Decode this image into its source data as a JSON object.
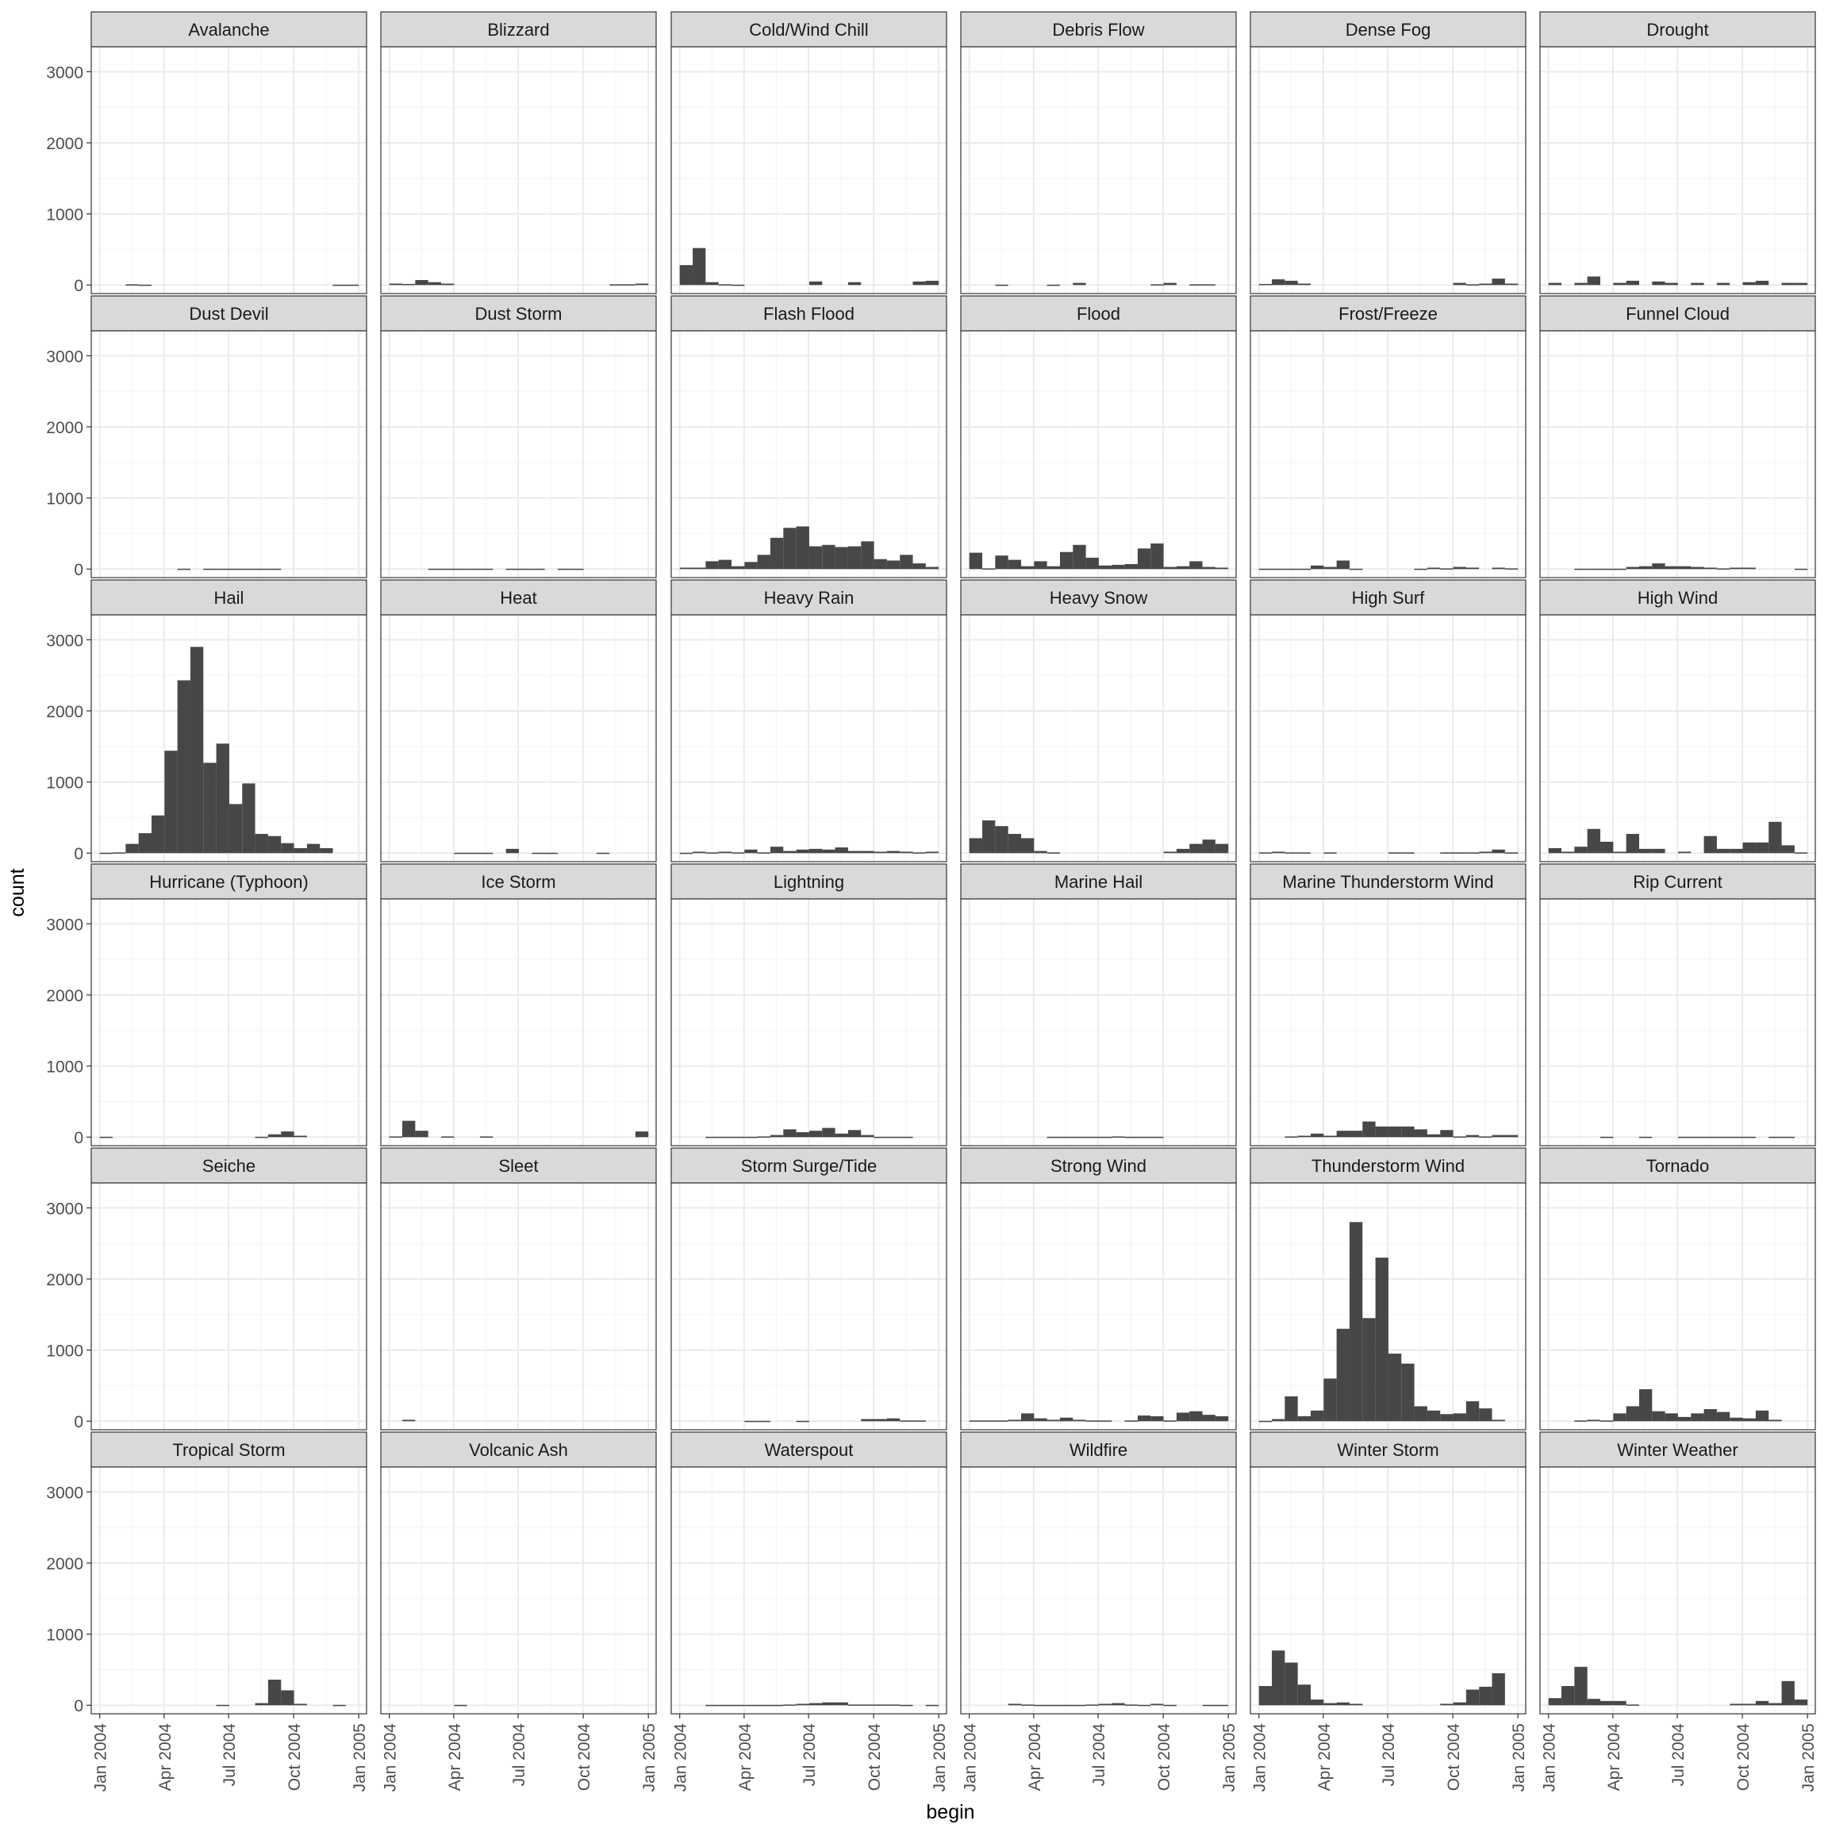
{
  "chart_data": {
    "type": "bar",
    "ylabel": "count",
    "xlabel": "begin",
    "ylim": [
      -120,
      3350
    ],
    "xlim": [
      -12,
      377
    ],
    "grid": true,
    "layout": {
      "columns": 6,
      "rows": 6
    },
    "bins": {
      "count": 20,
      "width_days": 18.3,
      "origin_days_from_x_start": 0
    },
    "x_ticks": [
      {
        "label": "Jan 2004",
        "day": 0
      },
      {
        "label": "Apr 2004",
        "day": 91
      },
      {
        "label": "Jul 2004",
        "day": 182
      },
      {
        "label": "Oct 2004",
        "day": 274
      },
      {
        "label": "Jan 2005",
        "day": 366
      }
    ],
    "y_ticks": [
      0,
      1000,
      2000,
      3000
    ],
    "panels": [
      {
        "title": "Avalanche",
        "values": [
          0,
          0,
          10,
          5,
          0,
          0,
          0,
          0,
          0,
          0,
          0,
          0,
          0,
          0,
          0,
          0,
          0,
          0,
          5,
          5
        ]
      },
      {
        "title": "Blizzard",
        "values": [
          20,
          15,
          70,
          40,
          20,
          0,
          0,
          0,
          0,
          0,
          0,
          0,
          0,
          0,
          0,
          0,
          0,
          10,
          10,
          20
        ]
      },
      {
        "title": "Cold/Wind Chill",
        "values": [
          280,
          520,
          40,
          10,
          5,
          0,
          0,
          0,
          0,
          0,
          50,
          0,
          0,
          40,
          0,
          0,
          0,
          0,
          50,
          60
        ]
      },
      {
        "title": "Debris Flow",
        "values": [
          0,
          0,
          5,
          0,
          0,
          0,
          5,
          0,
          30,
          0,
          0,
          0,
          0,
          0,
          10,
          30,
          0,
          10,
          10,
          0
        ]
      },
      {
        "title": "Dense Fog",
        "values": [
          15,
          80,
          60,
          20,
          0,
          0,
          0,
          0,
          0,
          0,
          0,
          0,
          0,
          0,
          0,
          30,
          10,
          20,
          90,
          20
        ]
      },
      {
        "title": "Drought",
        "values": [
          30,
          0,
          30,
          120,
          0,
          30,
          60,
          0,
          50,
          30,
          0,
          30,
          0,
          30,
          0,
          40,
          60,
          0,
          30,
          30
        ]
      },
      {
        "title": "Dust Devil",
        "values": [
          0,
          0,
          0,
          0,
          0,
          0,
          5,
          0,
          5,
          5,
          5,
          5,
          5,
          5,
          0,
          0,
          0,
          0,
          0,
          0
        ]
      },
      {
        "title": "Dust Storm",
        "values": [
          0,
          0,
          0,
          5,
          5,
          5,
          5,
          5,
          0,
          5,
          5,
          5,
          0,
          5,
          5,
          0,
          0,
          0,
          0,
          0
        ]
      },
      {
        "title": "Flash Flood",
        "values": [
          20,
          20,
          110,
          130,
          40,
          100,
          200,
          440,
          580,
          600,
          320,
          340,
          310,
          320,
          390,
          140,
          120,
          200,
          80,
          30
        ]
      },
      {
        "title": "Flood",
        "values": [
          230,
          10,
          190,
          130,
          40,
          110,
          40,
          240,
          340,
          160,
          50,
          60,
          70,
          290,
          360,
          30,
          40,
          110,
          30,
          20
        ]
      },
      {
        "title": "Frost/Freeze",
        "values": [
          5,
          5,
          5,
          5,
          50,
          30,
          120,
          5,
          0,
          0,
          0,
          0,
          5,
          20,
          10,
          30,
          20,
          0,
          20,
          10
        ]
      },
      {
        "title": "Funnel Cloud",
        "values": [
          0,
          0,
          5,
          5,
          5,
          5,
          30,
          40,
          80,
          40,
          40,
          30,
          20,
          10,
          20,
          20,
          0,
          0,
          0,
          5
        ]
      },
      {
        "title": "Hail",
        "values": [
          5,
          10,
          130,
          280,
          530,
          1440,
          2430,
          2900,
          1270,
          1540,
          690,
          980,
          270,
          240,
          140,
          70,
          130,
          70,
          0,
          0
        ]
      },
      {
        "title": "Heat",
        "values": [
          0,
          0,
          0,
          0,
          0,
          5,
          5,
          5,
          0,
          60,
          0,
          5,
          5,
          0,
          0,
          0,
          5,
          0,
          0,
          0
        ]
      },
      {
        "title": "Heavy Rain",
        "values": [
          5,
          20,
          10,
          20,
          10,
          50,
          10,
          90,
          30,
          50,
          60,
          50,
          80,
          30,
          30,
          20,
          30,
          20,
          10,
          20
        ]
      },
      {
        "title": "Heavy Snow",
        "values": [
          210,
          460,
          380,
          270,
          210,
          30,
          10,
          0,
          0,
          0,
          0,
          0,
          0,
          0,
          0,
          20,
          60,
          130,
          190,
          130
        ]
      },
      {
        "title": "High Surf",
        "values": [
          10,
          20,
          10,
          10,
          0,
          10,
          0,
          0,
          0,
          0,
          10,
          10,
          0,
          0,
          10,
          10,
          10,
          20,
          50,
          10
        ]
      },
      {
        "title": "High Wind",
        "values": [
          70,
          20,
          90,
          340,
          160,
          20,
          270,
          60,
          60,
          0,
          20,
          0,
          240,
          60,
          60,
          150,
          150,
          440,
          110,
          10
        ]
      },
      {
        "title": "Hurricane (Typhoon)",
        "values": [
          5,
          0,
          0,
          0,
          0,
          0,
          0,
          0,
          0,
          0,
          0,
          0,
          5,
          40,
          80,
          20,
          0,
          0,
          0,
          0
        ]
      },
      {
        "title": "Ice Storm",
        "values": [
          10,
          230,
          90,
          0,
          10,
          0,
          0,
          10,
          0,
          0,
          0,
          0,
          0,
          0,
          0,
          0,
          0,
          0,
          0,
          80
        ]
      },
      {
        "title": "Lightning",
        "values": [
          0,
          0,
          5,
          5,
          5,
          5,
          10,
          30,
          110,
          70,
          90,
          130,
          50,
          100,
          30,
          5,
          5,
          5,
          0,
          0
        ]
      },
      {
        "title": "Marine Hail",
        "values": [
          0,
          0,
          0,
          0,
          0,
          0,
          5,
          5,
          5,
          5,
          5,
          10,
          5,
          5,
          5,
          0,
          0,
          0,
          0,
          0
        ]
      },
      {
        "title": "Marine Thunderstorm Wind",
        "values": [
          0,
          0,
          10,
          20,
          50,
          20,
          90,
          90,
          220,
          150,
          150,
          150,
          110,
          40,
          100,
          10,
          30,
          10,
          30,
          30
        ]
      },
      {
        "title": "Rip Current",
        "values": [
          0,
          0,
          0,
          0,
          5,
          0,
          0,
          5,
          0,
          0,
          5,
          5,
          5,
          5,
          5,
          5,
          0,
          5,
          5,
          0
        ]
      },
      {
        "title": "Seiche",
        "values": [
          0,
          0,
          0,
          0,
          0,
          0,
          0,
          0,
          0,
          0,
          0,
          0,
          0,
          0,
          0,
          0,
          0,
          0,
          0,
          0
        ]
      },
      {
        "title": "Sleet",
        "values": [
          0,
          20,
          0,
          0,
          0,
          0,
          0,
          0,
          0,
          0,
          0,
          0,
          0,
          0,
          0,
          0,
          0,
          0,
          0,
          0
        ]
      },
      {
        "title": "Storm Surge/Tide",
        "values": [
          0,
          0,
          0,
          0,
          0,
          5,
          5,
          0,
          0,
          5,
          0,
          0,
          0,
          0,
          30,
          30,
          40,
          10,
          10,
          0
        ]
      },
      {
        "title": "Strong Wind",
        "values": [
          10,
          10,
          10,
          20,
          110,
          40,
          20,
          50,
          20,
          10,
          10,
          0,
          10,
          80,
          70,
          10,
          120,
          140,
          90,
          70
        ]
      },
      {
        "title": "Thunderstorm Wind",
        "values": [
          5,
          30,
          350,
          70,
          150,
          600,
          1300,
          2800,
          1450,
          2300,
          950,
          810,
          210,
          150,
          100,
          110,
          280,
          180,
          20,
          0
        ]
      },
      {
        "title": "Tornado",
        "values": [
          0,
          0,
          10,
          20,
          10,
          110,
          210,
          450,
          140,
          110,
          60,
          110,
          170,
          130,
          50,
          40,
          150,
          20,
          0,
          0
        ]
      },
      {
        "title": "Tropical Storm",
        "values": [
          0,
          0,
          0,
          0,
          0,
          0,
          0,
          0,
          0,
          5,
          0,
          0,
          30,
          360,
          210,
          20,
          0,
          0,
          5,
          0
        ]
      },
      {
        "title": "Volcanic Ash",
        "values": [
          0,
          0,
          0,
          0,
          0,
          5,
          0,
          0,
          0,
          0,
          0,
          0,
          0,
          0,
          0,
          0,
          0,
          0,
          0,
          0
        ]
      },
      {
        "title": "Waterspout",
        "values": [
          0,
          0,
          5,
          5,
          5,
          5,
          5,
          5,
          10,
          20,
          30,
          40,
          40,
          10,
          10,
          10,
          10,
          5,
          0,
          5
        ]
      },
      {
        "title": "Wildfire",
        "values": [
          0,
          0,
          0,
          20,
          10,
          5,
          5,
          5,
          5,
          10,
          20,
          30,
          10,
          5,
          20,
          5,
          0,
          0,
          5,
          5
        ]
      },
      {
        "title": "Winter Storm",
        "values": [
          270,
          770,
          600,
          290,
          80,
          30,
          40,
          20,
          0,
          0,
          0,
          0,
          0,
          0,
          20,
          40,
          220,
          260,
          450,
          0
        ]
      },
      {
        "title": "Winter Weather",
        "values": [
          100,
          270,
          540,
          90,
          60,
          60,
          10,
          0,
          0,
          0,
          0,
          0,
          0,
          0,
          20,
          20,
          60,
          30,
          340,
          80
        ]
      }
    ],
    "colors": {
      "bar": "#474747",
      "strip_fill": "#d9d9d9",
      "panel_border": "#333333",
      "grid_major": "#ebebeb",
      "grid_minor": "#f5f5f5",
      "tick_text": "#4d4d4d",
      "strip_text": "#1a1a1a",
      "axis_title": "#000000"
    }
  }
}
